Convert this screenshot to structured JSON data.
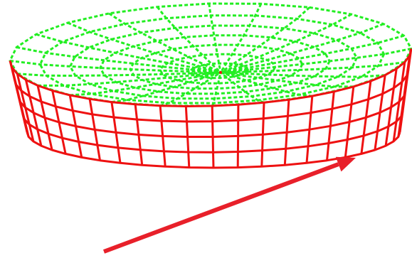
{
  "diagram": {
    "kind": "3d-wireframe-bowl",
    "colors": {
      "background": "#ffffff",
      "interior_mesh": "#22ee22",
      "exterior_mesh": "#ee1111",
      "arrow": "#e8202a"
    },
    "mesh": {
      "meridians": 24,
      "interior_rings": 7,
      "exterior_rings": 4
    },
    "annotations": {
      "arrow": {
        "icon": "arrow-pointer"
      }
    }
  }
}
